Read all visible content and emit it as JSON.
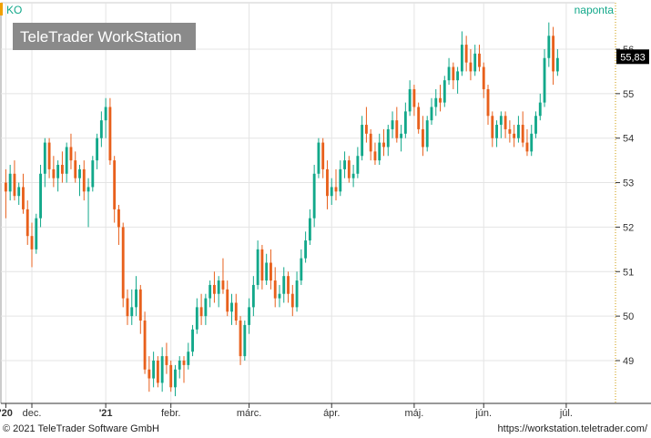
{
  "chart_data": {
    "type": "candlestick",
    "symbol": "KO",
    "period_label": "naponta",
    "watermark": "TeleTrader WorkStation",
    "last_price_label": "55,83",
    "y_ticks": [
      {
        "value": 49,
        "label": "49"
      },
      {
        "value": 50,
        "label": "50"
      },
      {
        "value": 51,
        "label": "51"
      },
      {
        "value": 52,
        "label": "52"
      },
      {
        "value": 53,
        "label": "53"
      },
      {
        "value": 54,
        "label": "54"
      },
      {
        "value": 55,
        "label": "55"
      },
      {
        "value": 56,
        "label": "56"
      }
    ],
    "ylim": [
      48.2,
      56.5
    ],
    "x_ticks": [
      {
        "index": 0,
        "label": "'20",
        "bold": true
      },
      {
        "index": 6,
        "label": "dec.",
        "bold": false
      },
      {
        "index": 23,
        "label": "'21",
        "bold": true
      },
      {
        "index": 38,
        "label": "febr.",
        "bold": false
      },
      {
        "index": 56,
        "label": "márc.",
        "bold": false
      },
      {
        "index": 75,
        "label": "ápr.",
        "bold": false
      },
      {
        "index": 94,
        "label": "máj.",
        "bold": false
      },
      {
        "index": 110,
        "label": "jún.",
        "bold": false
      },
      {
        "index": 129,
        "label": "júl.",
        "bold": false
      }
    ],
    "n_slots": 140,
    "colors": {
      "up": "#12a88a",
      "down": "#e8601c",
      "grid": "#e4e4e4",
      "axis": "#333333",
      "label": "#333333",
      "period": "#12a88a",
      "symbol": "#12a88a",
      "last_box": "#000000"
    },
    "candles": [
      [
        53.0,
        53.3,
        52.2,
        52.8
      ],
      [
        52.8,
        53.4,
        52.6,
        53.2
      ],
      [
        53.2,
        53.5,
        52.6,
        52.7
      ],
      [
        52.7,
        53.0,
        52.5,
        52.9
      ],
      [
        52.9,
        53.2,
        52.3,
        52.4
      ],
      [
        52.4,
        52.6,
        51.6,
        51.8
      ],
      [
        51.8,
        52.1,
        51.1,
        51.5
      ],
      [
        51.5,
        52.3,
        51.4,
        52.2
      ],
      [
        52.2,
        53.4,
        52.0,
        53.2
      ],
      [
        53.2,
        54.0,
        52.9,
        53.9
      ],
      [
        53.9,
        54.0,
        53.1,
        53.3
      ],
      [
        53.3,
        53.6,
        52.9,
        53.1
      ],
      [
        53.1,
        53.5,
        52.8,
        53.4
      ],
      [
        53.4,
        53.7,
        53.0,
        53.2
      ],
      [
        53.2,
        53.9,
        53.0,
        53.8
      ],
      [
        53.8,
        54.1,
        53.3,
        53.5
      ],
      [
        53.5,
        53.7,
        53.0,
        53.1
      ],
      [
        53.1,
        53.4,
        52.7,
        53.3
      ],
      [
        53.3,
        53.5,
        52.6,
        52.8
      ],
      [
        52.8,
        53.1,
        52.0,
        52.9
      ],
      [
        52.9,
        53.6,
        52.8,
        53.5
      ],
      [
        53.5,
        54.1,
        53.3,
        54.0
      ],
      [
        54.0,
        54.6,
        53.8,
        54.4
      ],
      [
        54.4,
        54.9,
        54.0,
        54.7
      ],
      [
        54.7,
        54.9,
        53.4,
        53.5
      ],
      [
        53.5,
        53.6,
        52.1,
        52.4
      ],
      [
        52.4,
        52.5,
        51.6,
        52.0
      ],
      [
        52.0,
        52.1,
        50.2,
        50.4
      ],
      [
        50.4,
        50.6,
        49.8,
        50.0
      ],
      [
        50.0,
        50.6,
        49.8,
        50.2
      ],
      [
        50.2,
        50.9,
        50.0,
        50.6
      ],
      [
        50.6,
        50.7,
        49.6,
        49.9
      ],
      [
        49.9,
        50.1,
        48.7,
        48.8
      ],
      [
        48.8,
        49.1,
        48.3,
        48.6
      ],
      [
        48.6,
        49.2,
        48.4,
        49.0
      ],
      [
        49.0,
        49.1,
        48.4,
        48.5
      ],
      [
        48.5,
        49.3,
        48.3,
        49.1
      ],
      [
        49.1,
        49.4,
        48.7,
        48.9
      ],
      [
        48.9,
        49.0,
        48.3,
        48.4
      ],
      [
        48.4,
        48.9,
        48.2,
        48.8
      ],
      [
        48.8,
        49.1,
        48.6,
        49.0
      ],
      [
        49.0,
        49.1,
        48.5,
        48.9
      ],
      [
        48.9,
        49.4,
        48.8,
        49.2
      ],
      [
        49.2,
        49.8,
        49.1,
        49.7
      ],
      [
        49.7,
        50.4,
        49.6,
        50.2
      ],
      [
        50.2,
        50.5,
        49.8,
        50.0
      ],
      [
        50.0,
        50.5,
        49.8,
        50.4
      ],
      [
        50.4,
        50.8,
        50.2,
        50.7
      ],
      [
        50.7,
        51.0,
        50.3,
        50.5
      ],
      [
        50.5,
        50.9,
        50.2,
        50.8
      ],
      [
        50.8,
        51.3,
        50.5,
        50.6
      ],
      [
        50.6,
        50.8,
        50.0,
        50.1
      ],
      [
        50.1,
        50.5,
        49.8,
        50.3
      ],
      [
        50.3,
        50.5,
        49.8,
        49.9
      ],
      [
        49.9,
        50.0,
        48.9,
        49.1
      ],
      [
        49.1,
        49.9,
        49.0,
        49.8
      ],
      [
        49.8,
        50.4,
        49.6,
        50.2
      ],
      [
        50.2,
        50.9,
        50.0,
        50.7
      ],
      [
        50.7,
        51.7,
        50.6,
        51.5
      ],
      [
        51.5,
        51.6,
        50.6,
        50.8
      ],
      [
        50.8,
        51.4,
        50.7,
        51.2
      ],
      [
        51.2,
        51.5,
        50.6,
        50.8
      ],
      [
        50.8,
        51.1,
        50.2,
        50.4
      ],
      [
        50.4,
        50.7,
        50.2,
        50.5
      ],
      [
        50.5,
        51.1,
        50.3,
        50.9
      ],
      [
        50.9,
        51.0,
        50.3,
        50.5
      ],
      [
        50.5,
        50.7,
        50.0,
        50.2
      ],
      [
        50.2,
        51.0,
        50.1,
        50.8
      ],
      [
        50.8,
        51.5,
        50.7,
        51.3
      ],
      [
        51.3,
        51.9,
        51.2,
        51.7
      ],
      [
        51.7,
        52.4,
        51.6,
        52.2
      ],
      [
        52.2,
        53.4,
        52.0,
        53.2
      ],
      [
        53.2,
        54.0,
        53.1,
        53.9
      ],
      [
        53.9,
        54.0,
        53.1,
        53.3
      ],
      [
        53.3,
        53.5,
        52.4,
        52.7
      ],
      [
        52.7,
        53.1,
        52.5,
        52.9
      ],
      [
        52.9,
        53.3,
        52.6,
        52.8
      ],
      [
        52.8,
        53.5,
        52.7,
        53.3
      ],
      [
        53.3,
        53.7,
        53.1,
        53.5
      ],
      [
        53.5,
        53.6,
        53.0,
        53.1
      ],
      [
        53.1,
        53.4,
        52.9,
        53.2
      ],
      [
        53.2,
        53.8,
        53.1,
        53.6
      ],
      [
        53.6,
        54.5,
        53.5,
        54.3
      ],
      [
        54.3,
        54.7,
        53.9,
        54.1
      ],
      [
        54.1,
        54.2,
        53.5,
        53.7
      ],
      [
        53.7,
        53.9,
        53.4,
        53.5
      ],
      [
        53.5,
        54.1,
        53.4,
        53.9
      ],
      [
        53.9,
        54.2,
        53.6,
        53.8
      ],
      [
        53.8,
        54.3,
        53.6,
        54.2
      ],
      [
        54.2,
        54.6,
        54.0,
        54.4
      ],
      [
        54.4,
        54.7,
        53.9,
        54.0
      ],
      [
        54.0,
        54.3,
        53.7,
        54.1
      ],
      [
        54.1,
        54.8,
        54.0,
        54.6
      ],
      [
        54.6,
        55.3,
        54.5,
        55.1
      ],
      [
        55.1,
        55.2,
        54.5,
        54.7
      ],
      [
        54.7,
        54.8,
        54.1,
        54.2
      ],
      [
        54.2,
        54.5,
        53.6,
        53.8
      ],
      [
        53.8,
        54.5,
        53.7,
        54.4
      ],
      [
        54.4,
        54.9,
        54.3,
        54.7
      ],
      [
        54.7,
        55.1,
        54.5,
        54.9
      ],
      [
        54.9,
        55.2,
        54.6,
        54.8
      ],
      [
        54.8,
        55.4,
        54.7,
        55.3
      ],
      [
        55.3,
        55.8,
        55.2,
        55.6
      ],
      [
        55.6,
        55.7,
        55.1,
        55.3
      ],
      [
        55.3,
        55.6,
        55.0,
        55.5
      ],
      [
        55.5,
        56.4,
        55.4,
        56.1
      ],
      [
        56.1,
        56.3,
        55.5,
        55.7
      ],
      [
        55.7,
        56.0,
        55.3,
        55.5
      ],
      [
        55.5,
        56.1,
        55.4,
        55.9
      ],
      [
        55.9,
        56.1,
        55.5,
        55.6
      ],
      [
        55.6,
        55.7,
        54.9,
        55.1
      ],
      [
        55.1,
        55.2,
        54.3,
        54.5
      ],
      [
        54.5,
        54.6,
        53.8,
        54.0
      ],
      [
        54.0,
        54.4,
        53.8,
        54.3
      ],
      [
        54.3,
        54.6,
        54.0,
        54.5
      ],
      [
        54.5,
        54.6,
        54.0,
        54.2
      ],
      [
        54.2,
        54.4,
        53.9,
        54.1
      ],
      [
        54.1,
        54.3,
        53.8,
        54.0
      ],
      [
        54.0,
        54.5,
        53.9,
        54.3
      ],
      [
        54.3,
        54.6,
        53.8,
        53.9
      ],
      [
        53.9,
        54.2,
        53.6,
        53.7
      ],
      [
        53.7,
        54.3,
        53.6,
        54.1
      ],
      [
        54.1,
        54.6,
        54.0,
        54.5
      ],
      [
        54.5,
        55.0,
        54.4,
        54.8
      ],
      [
        54.8,
        56.0,
        54.7,
        55.8
      ],
      [
        55.8,
        56.6,
        55.6,
        56.3
      ],
      [
        56.3,
        56.5,
        55.2,
        55.5
      ],
      [
        55.5,
        56.0,
        55.4,
        55.8
      ]
    ]
  },
  "footer": {
    "copyright": "© 2021 TeleTrader Software GmbH",
    "url": "https://workstation.teletrader.com/"
  }
}
